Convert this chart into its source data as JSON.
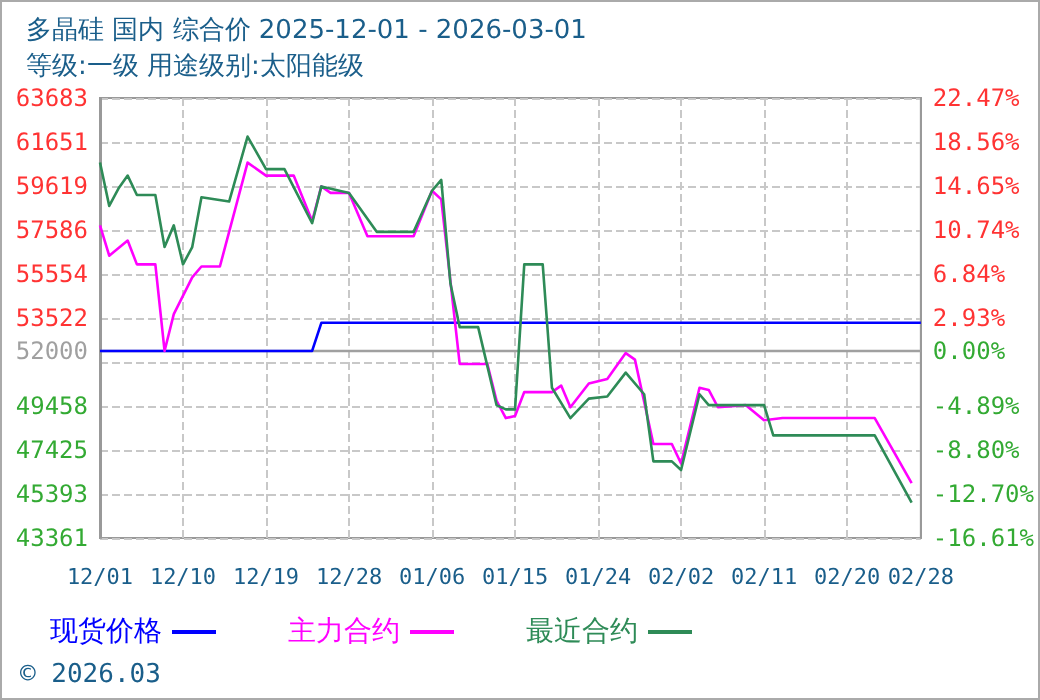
{
  "chart_data": {
    "type": "line",
    "title": "多晶硅 国内 综合价 2025-12-01 - 2026-03-01",
    "subtitle": "等级:一级 用途级别:太阳能级",
    "annotations": [
      "© 2026.03"
    ],
    "series": [
      {
        "name": "现货价格",
        "color": "#0000ff",
        "x": [
          "2025-12-01",
          "2025-12-24",
          "2025-12-25",
          "2026-02-28"
        ],
        "values": [
          52000,
          52000,
          53300,
          53300
        ]
      },
      {
        "name": "主力合约",
        "color": "#ff00ff",
        "x": [
          "2025-12-01",
          "2025-12-02",
          "2025-12-04",
          "2025-12-05",
          "2025-12-07",
          "2025-12-08",
          "2025-12-09",
          "2025-12-11",
          "2025-12-12",
          "2025-12-14",
          "2025-12-17",
          "2025-12-19",
          "2025-12-22",
          "2025-12-24",
          "2025-12-25",
          "2025-12-26",
          "2025-12-28",
          "2025-12-30",
          "2026-01-04",
          "2026-01-06",
          "2026-01-07",
          "2026-01-09",
          "2026-01-12",
          "2026-01-13",
          "2026-01-14",
          "2026-01-15",
          "2026-01-16",
          "2026-01-19",
          "2026-01-20",
          "2026-01-21",
          "2026-01-23",
          "2026-01-25",
          "2026-01-27",
          "2026-01-28",
          "2026-01-30",
          "2026-02-01",
          "2026-02-02",
          "2026-02-04",
          "2026-02-05",
          "2026-02-06",
          "2026-02-09",
          "2026-02-11",
          "2026-02-13",
          "2026-02-23",
          "2026-02-25",
          "2026-02-27"
        ],
        "values": [
          57800,
          56400,
          57100,
          56000,
          56000,
          52000,
          53700,
          55400,
          55900,
          55900,
          60700,
          60100,
          60100,
          58000,
          59600,
          59300,
          59300,
          57300,
          57300,
          59400,
          59000,
          51400,
          51400,
          49700,
          48900,
          49000,
          50100,
          50100,
          50400,
          49400,
          50500,
          50700,
          51900,
          51600,
          47700,
          47700,
          46800,
          50300,
          50200,
          49400,
          49500,
          48800,
          48900,
          48900,
          47400,
          45900
        ]
      },
      {
        "name": "最近合约",
        "color": "#2e8b57",
        "x": [
          "2025-12-01",
          "2025-12-02",
          "2025-12-03",
          "2025-12-04",
          "2025-12-05",
          "2025-12-07",
          "2025-12-08",
          "2025-12-09",
          "2025-12-10",
          "2025-12-11",
          "2025-12-12",
          "2025-12-15",
          "2025-12-17",
          "2025-12-19",
          "2025-12-21",
          "2025-12-24",
          "2025-12-25",
          "2025-12-28",
          "2025-12-31",
          "2026-01-04",
          "2026-01-06",
          "2026-01-07",
          "2026-01-08",
          "2026-01-09",
          "2026-01-11",
          "2026-01-13",
          "2026-01-14",
          "2026-01-15",
          "2026-01-16",
          "2026-01-18",
          "2026-01-19",
          "2026-01-20",
          "2026-01-21",
          "2026-01-23",
          "2026-01-25",
          "2026-01-27",
          "2026-01-29",
          "2026-01-30",
          "2026-02-01",
          "2026-02-02",
          "2026-02-04",
          "2026-02-05",
          "2026-02-11",
          "2026-02-12",
          "2026-02-23",
          "2026-02-27"
        ],
        "values": [
          60700,
          58700,
          59500,
          60100,
          59200,
          59200,
          56800,
          57800,
          56000,
          56800,
          59100,
          58900,
          61900,
          60400,
          60400,
          57900,
          59600,
          59300,
          57500,
          57500,
          59400,
          59900,
          55100,
          53100,
          53100,
          49500,
          49300,
          49300,
          56000,
          56000,
          50300,
          49600,
          48900,
          49800,
          49900,
          51000,
          50000,
          46900,
          46900,
          46500,
          50000,
          49500,
          49500,
          48100,
          48100,
          45000
        ]
      }
    ],
    "xlim": [
      "2025-12-01",
      "2026-02-28"
    ],
    "xticks": [
      {
        "value": "2025-12-01",
        "label": "12/01"
      },
      {
        "value": "2025-12-10",
        "label": "12/10"
      },
      {
        "value": "2025-12-19",
        "label": "12/19"
      },
      {
        "value": "2025-12-28",
        "label": "12/28"
      },
      {
        "value": "2026-01-06",
        "label": "01/06"
      },
      {
        "value": "2026-01-15",
        "label": "01/15"
      },
      {
        "value": "2026-01-24",
        "label": "01/24"
      },
      {
        "value": "2026-02-02",
        "label": "02/02"
      },
      {
        "value": "2026-02-11",
        "label": "02/11"
      },
      {
        "value": "2026-02-20",
        "label": "02/20"
      },
      {
        "value": "2026-02-28",
        "label": "02/28"
      }
    ],
    "ylim": [
      43361,
      63683
    ],
    "yticks": [
      43361,
      45393,
      47425,
      49458,
      {
        "value": 51490,
        "label": null
      },
      52000,
      53522,
      55554,
      57586,
      59619,
      61651,
      63683
    ],
    "y2lim": [
      -16.61,
      22.47
    ],
    "y2ticks": [
      {
        "value": -16.61,
        "label": "-16.61%"
      },
      {
        "value": -12.7,
        "label": "-12.70%"
      },
      {
        "value": -8.8,
        "label": "-8.80%"
      },
      {
        "value": -4.89,
        "label": "-4.89%"
      },
      {
        "value": 0,
        "label": "0.00%"
      },
      {
        "value": 2.93,
        "label": "2.93%"
      },
      {
        "value": 6.84,
        "label": "6.84%"
      },
      {
        "value": 10.74,
        "label": "10.74%"
      },
      {
        "value": 14.65,
        "label": "14.65%"
      },
      {
        "value": 18.56,
        "label": "18.56%"
      },
      {
        "value": 22.47,
        "label": "22.47%"
      }
    ],
    "ref_lines": [
      {
        "axis": "y",
        "value": 52000,
        "color": "#a0a0a0"
      }
    ],
    "grid": true,
    "legend": "bottom",
    "marker": "none",
    "line_style": "solid"
  }
}
